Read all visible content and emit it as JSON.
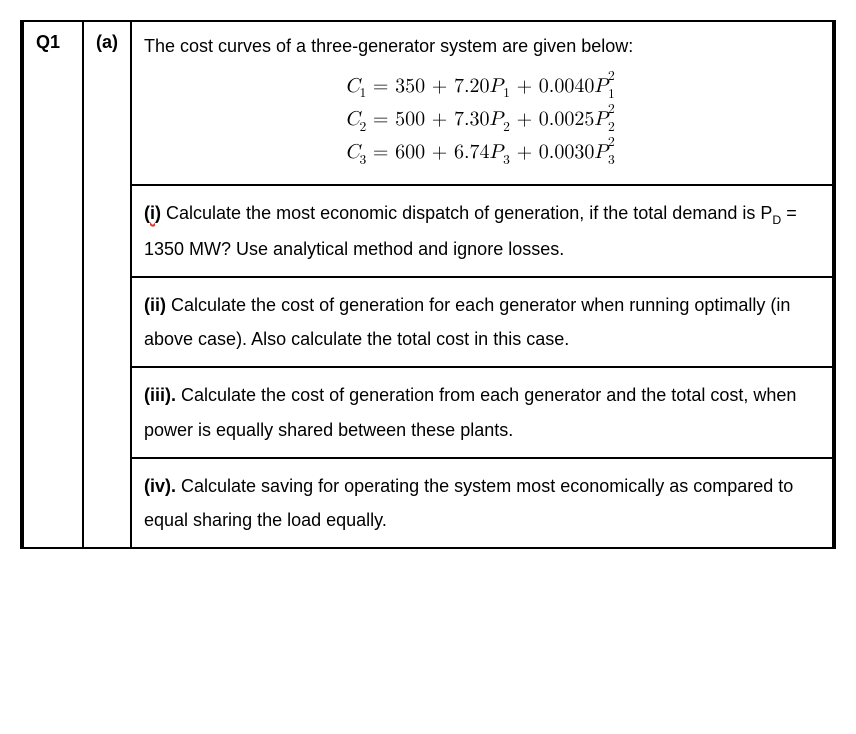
{
  "question_number": "Q1",
  "part_label": "(a)",
  "fonts": {
    "body_family": "Arial, Helvetica, sans-serif",
    "math_family": "Cambria Math, Times New Roman, serif",
    "body_size": 18,
    "math_size": 20
  },
  "colors": {
    "text": "#000000",
    "border": "#000000",
    "background": "#ffffff",
    "squiggle": "#e3342f"
  },
  "intro_text": "The cost curves of a three-generator system are given below:",
  "equations": [
    {
      "lhs": "C",
      "lhs_sub": "1",
      "a": "350",
      "b": "7.20",
      "p_sub": "1",
      "c": "0.0040",
      "p2_sub": "1"
    },
    {
      "lhs": "C",
      "lhs_sub": "2",
      "a": "500",
      "b": "7.30",
      "p_sub": "2",
      "c": "0.0025",
      "p2_sub": "2"
    },
    {
      "lhs": "C",
      "lhs_sub": "3",
      "a": "600",
      "b": "6.74",
      "p_sub": "3",
      "c": "0.0030",
      "p2_sub": "3"
    }
  ],
  "subparts": [
    {
      "label": "(i)",
      "before_pd": " Calculate the most economic dispatch of generation, if the total demand is ",
      "pd_symbol": "P",
      "pd_sub": "D",
      "after_pd": " = 1350 MW? Use analytical method and ignore losses.",
      "has_pd": true
    },
    {
      "label": "(ii)",
      "text": " Calculate the cost of generation for each generator when running optimally (in above case). Also calculate the total cost in this case.",
      "has_pd": false
    },
    {
      "label": "(iii).",
      "text": " Calculate the cost of generation from each generator and the total cost, when power is equally shared between these plants.",
      "has_pd": false
    },
    {
      "label": "(iv).",
      "text": " Calculate saving for operating the system most economically as compared to equal sharing the load equally.",
      "has_pd": false
    }
  ]
}
